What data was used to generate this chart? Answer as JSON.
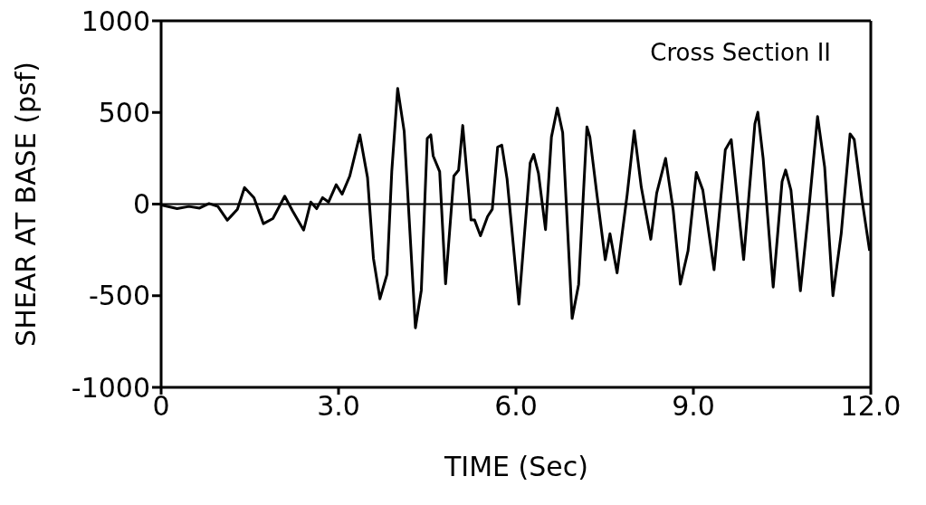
{
  "chart_data": {
    "type": "line",
    "xlabel": "TIME (Sec)",
    "ylabel": "SHEAR AT BASE (psf)",
    "annotations": [
      "Cross Section II"
    ],
    "x": [
      0,
      0.27,
      0.47,
      0.65,
      0.81,
      0.96,
      1.12,
      1.29,
      1.41,
      1.57,
      1.73,
      1.89,
      2.09,
      2.22,
      2.41,
      2.53,
      2.63,
      2.73,
      2.83,
      2.96,
      3.06,
      3.19,
      3.36,
      3.49,
      3.59,
      3.7,
      3.82,
      3.9,
      4.0,
      4.11,
      4.3,
      4.4,
      4.5,
      4.56,
      4.6,
      4.71,
      4.81,
      4.95,
      5.03,
      5.1,
      5.24,
      5.3,
      5.4,
      5.52,
      5.6,
      5.69,
      5.76,
      5.85,
      6.05,
      6.24,
      6.3,
      6.38,
      6.5,
      6.6,
      6.7,
      6.79,
      6.95,
      7.06,
      7.2,
      7.25,
      7.37,
      7.51,
      7.59,
      7.71,
      7.88,
      8.0,
      8.12,
      8.28,
      8.38,
      8.53,
      8.66,
      8.78,
      8.91,
      9.05,
      9.16,
      9.35,
      9.54,
      9.64,
      9.85,
      10.04,
      10.09,
      10.18,
      10.35,
      10.5,
      10.56,
      10.65,
      10.81,
      10.96,
      11.1,
      11.22,
      11.36,
      11.5,
      11.65,
      11.72,
      11.85,
      11.98
    ],
    "series": [
      {
        "color": "#000000",
        "values": [
          -5,
          -25,
          -13,
          -22,
          3,
          -13,
          -88,
          -28,
          90,
          35,
          -107,
          -79,
          43,
          -36,
          -142,
          11,
          -25,
          35,
          11,
          106,
          54,
          153,
          378,
          145,
          -296,
          -517,
          -383,
          177,
          631,
          397,
          -675,
          -470,
          358,
          378,
          263,
          177,
          -435,
          153,
          185,
          429,
          -87,
          -87,
          -173,
          -68,
          -28,
          311,
          322,
          137,
          -546,
          224,
          271,
          169,
          -139,
          366,
          524,
          390,
          -624,
          -438,
          421,
          366,
          50,
          -304,
          -162,
          -375,
          50,
          400,
          91,
          -192,
          60,
          249,
          -35,
          -437,
          -255,
          173,
          76,
          -358,
          296,
          352,
          -303,
          438,
          501,
          249,
          -453,
          123,
          186,
          76,
          -473,
          -3,
          478,
          202,
          -500,
          -161,
          383,
          352,
          28,
          -255
        ]
      }
    ],
    "xlim": [
      0,
      12
    ],
    "xticks": [
      0,
      {
        "value": 3,
        "label": "3.0"
      },
      {
        "value": 6,
        "label": "6.0"
      },
      {
        "value": 9,
        "label": "9.0"
      },
      {
        "value": 12,
        "label": "12.0"
      }
    ],
    "ylim": [
      -1000,
      1000
    ],
    "yticks": [
      -1000,
      -500,
      0,
      500,
      1000
    ],
    "ref_lines": [
      {
        "axis": "y",
        "value": 0,
        "color": "#000000"
      }
    ],
    "grid": false,
    "legend": false,
    "marker": "none",
    "line_style": "solid"
  }
}
